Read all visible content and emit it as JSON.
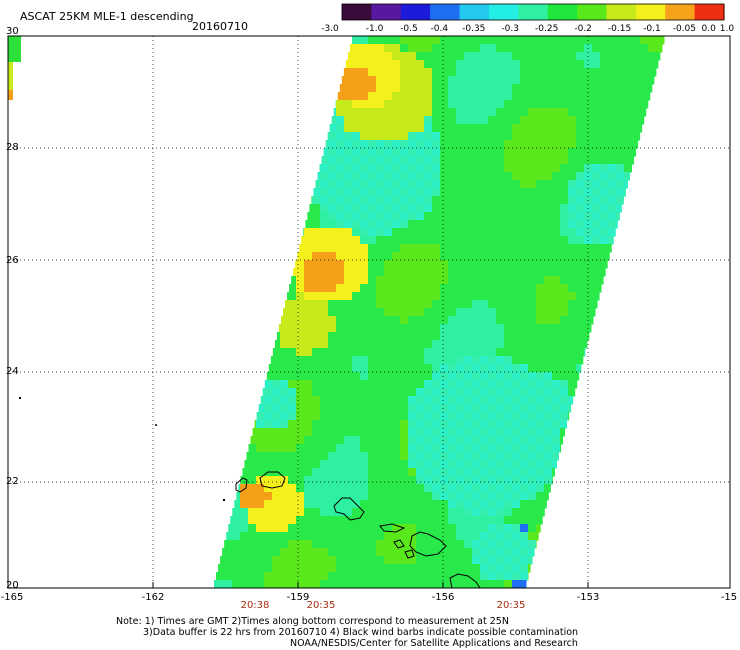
{
  "header": {
    "title": "ASCAT 25KM MLE-1 descending",
    "date": "20160710"
  },
  "colorbar": {
    "labels": [
      "-3.0",
      "-1.0",
      "-0.5",
      "-0.4",
      "-0.35",
      "-0.3",
      "-0.25",
      "-0.2",
      "-0.15",
      "-0.1",
      "-0.05",
      "0.0",
      "1.0"
    ],
    "colors": [
      "#3b0b3b",
      "#5a17a0",
      "#1b1bd9",
      "#1f6ff2",
      "#22c8ee",
      "#22eee4",
      "#2ef0a0",
      "#1ee63a",
      "#58e81c",
      "#c7ea1a",
      "#f3f01c",
      "#f6a21a",
      "#ee2f12"
    ]
  },
  "map": {
    "lat_labels": [
      "30",
      "28",
      "26",
      "24",
      "22",
      "20"
    ],
    "lon_labels": [
      "-165",
      "-162",
      "-159",
      "-156",
      "-153",
      "-15"
    ]
  },
  "times": [
    "20:38",
    "20:35",
    "20:35"
  ],
  "notes": {
    "line1": "Note: 1) Times are GMT 2)Times along bottom correspond to measurement at 25N",
    "line2": "3)Data buffer is 22 hrs from 20160710 4) Black wind barbs indicate possible contamination",
    "line3": "NOAA/NESDIS/Center for Satellite Applications and Research"
  }
}
